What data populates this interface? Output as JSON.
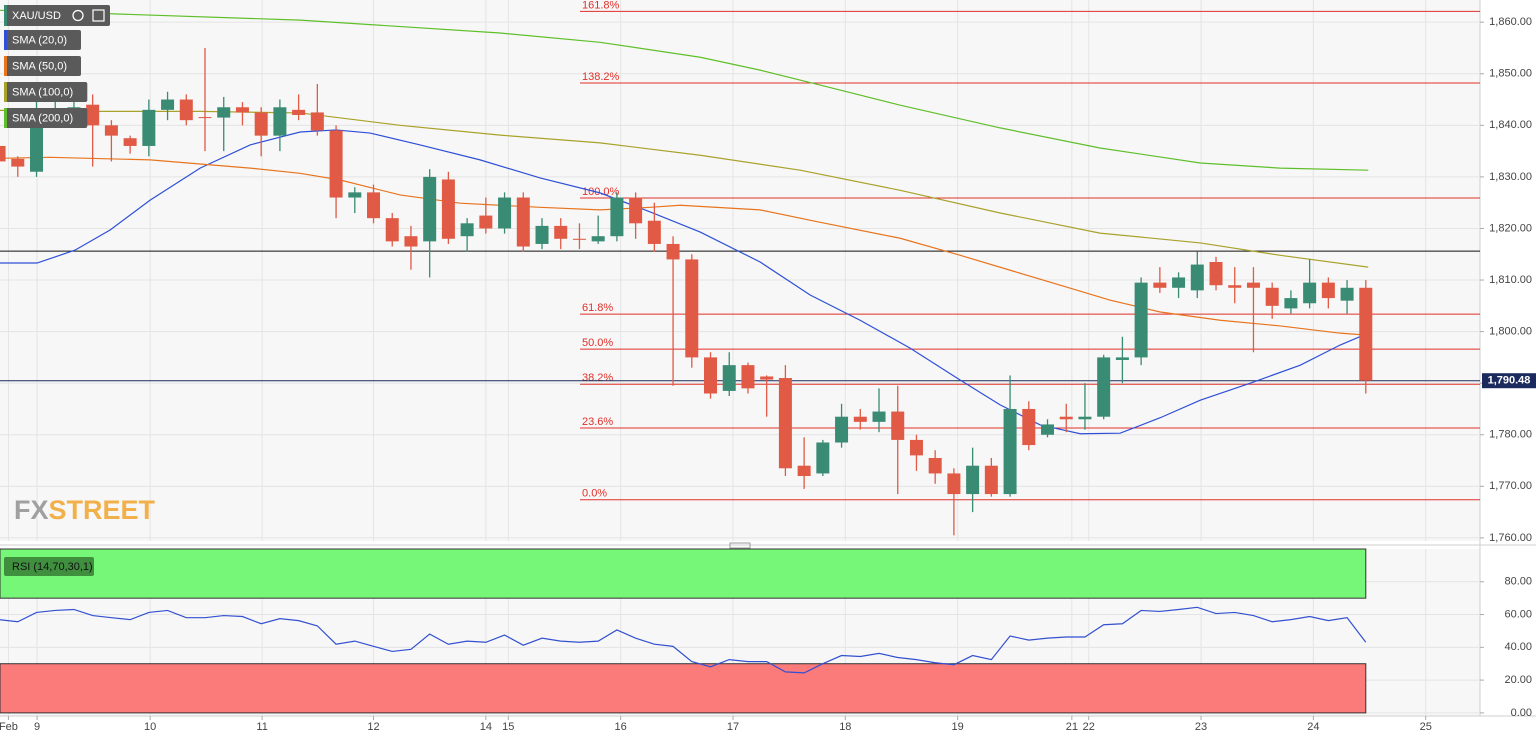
{
  "chart_data": [
    {
      "type": "candlestick",
      "title": "XAU/USD",
      "up_color": "#3a8b74",
      "down_color": "#e05a45",
      "open": [
        1836,
        1833.5,
        1831,
        1842,
        1842.5,
        1844,
        1840,
        1837.5,
        1836,
        1843,
        1845,
        1841.6,
        1841.5,
        1843.5,
        1842.5,
        1838,
        1843,
        1842.5,
        1839,
        1826,
        1827,
        1822,
        1818.5,
        1817.5,
        1829.5,
        1818.5,
        1822.5,
        1820,
        1826,
        1817,
        1820.5,
        1818,
        1817.5,
        1818.5,
        1826,
        1821.5,
        1817,
        1814,
        1795,
        1788.5,
        1793.5,
        1791.3,
        1791,
        1774,
        1772.5,
        1778.5,
        1783.5,
        1782.5,
        1784.5,
        1779,
        1775.5,
        1772.5,
        1768.5,
        1774,
        1768.5,
        1785,
        1780,
        1783.5,
        1783,
        1783.5,
        1794.5,
        1795,
        1809.5,
        1808.5,
        1808,
        1813.5,
        1809,
        1809.5,
        1808.5,
        1804.5,
        1805.5,
        1809.5,
        1806,
        1808.5
      ],
      "high": [
        1837,
        1834,
        1846,
        1846,
        1848,
        1846,
        1841,
        1838,
        1845,
        1846.5,
        1846,
        1855,
        1845.5,
        1844.5,
        1843.5,
        1845,
        1846,
        1848,
        1840,
        1828,
        1828.5,
        1823,
        1820.5,
        1831.5,
        1831,
        1822,
        1826,
        1827,
        1827,
        1822,
        1822,
        1821,
        1822.5,
        1827,
        1827,
        1825,
        1818.5,
        1815,
        1796,
        1796,
        1794,
        1791.5,
        1793.5,
        1779.5,
        1779,
        1786,
        1785,
        1789,
        1789.5,
        1780,
        1777,
        1773.5,
        1777.5,
        1775.5,
        1791.5,
        1786.5,
        1783,
        1786,
        1790,
        1795.5,
        1799,
        1810.5,
        1812.5,
        1811.5,
        1815.5,
        1814.5,
        1812.5,
        1812.5,
        1809.5,
        1808,
        1814,
        1810.5,
        1810,
        1810
      ],
      "low": [
        1832,
        1830,
        1830,
        1840,
        1840,
        1832,
        1833,
        1834.5,
        1834,
        1841,
        1840,
        1835,
        1835,
        1840,
        1834,
        1835,
        1841,
        1838,
        1822,
        1823,
        1821,
        1816.5,
        1812,
        1810.5,
        1817,
        1815.5,
        1819,
        1819,
        1815.5,
        1816,
        1816,
        1816,
        1817,
        1817.5,
        1818,
        1815.5,
        1789.5,
        1793,
        1787,
        1787.5,
        1788,
        1783.5,
        1772,
        1769.5,
        1772,
        1777.5,
        1781,
        1780.5,
        1768.5,
        1773,
        1770.5,
        1760.5,
        1765,
        1768,
        1768,
        1777,
        1779.5,
        1780.5,
        1781,
        1783,
        1790,
        1793.5,
        1807.5,
        1806.5,
        1806.5,
        1808,
        1805.5,
        1796,
        1802.5,
        1803.5,
        1804.5,
        1804.5,
        1803.5,
        1788
      ],
      "close": [
        1833,
        1832,
        1843,
        1843,
        1843.5,
        1840,
        1838,
        1836,
        1843,
        1845,
        1841,
        1841.4,
        1843.5,
        1842.5,
        1838,
        1843.5,
        1842,
        1839,
        1826,
        1827,
        1822,
        1817.5,
        1816.5,
        1830,
        1818,
        1821,
        1820,
        1826,
        1816.5,
        1820.5,
        1818,
        1817.8,
        1818.5,
        1826,
        1821,
        1817,
        1814,
        1795,
        1788,
        1793.5,
        1789,
        1790.7,
        1773.5,
        1772,
        1778.5,
        1783.5,
        1782.5,
        1784.5,
        1779,
        1776,
        1772.5,
        1768.5,
        1774,
        1768.5,
        1785,
        1778,
        1782,
        1783,
        1783.5,
        1795,
        1795,
        1809.5,
        1808.5,
        1810.5,
        1813,
        1809,
        1808.5,
        1808.5,
        1805,
        1806.5,
        1809.5,
        1806.5,
        1808.5,
        1790.48
      ],
      "series": [
        {
          "name": "SMA (20,0)",
          "color": "#2f4fd8",
          "x": [
            0.05,
            2.03,
            4.06,
            5.93,
            8.07,
            10.74,
            13.41,
            16.08,
            18.0,
            19.82,
            22.49,
            25.69,
            28.9,
            32.1,
            34.78,
            37.45,
            40.65,
            43.32,
            45.99,
            48.66,
            51.34,
            53.47,
            55.61,
            57.75,
            59.88,
            62.02,
            64.16,
            66.83,
            69.5,
            71.63,
            73.13
          ],
          "values": [
            1813.3,
            1813.3,
            1815.8,
            1819.7,
            1825.5,
            1831.7,
            1836.2,
            1838.7,
            1839.1,
            1838.5,
            1836.2,
            1833.3,
            1829.8,
            1826.9,
            1823.2,
            1819.3,
            1813.5,
            1807.1,
            1802.2,
            1796.8,
            1790.6,
            1785.8,
            1781.9,
            1780.2,
            1780.3,
            1783.3,
            1786.7,
            1790.0,
            1793.5,
            1797.4,
            1799.7
          ]
        },
        {
          "name": "SMA (50,0)",
          "color": "#e8741e",
          "x": [
            0.05,
            2.72,
            8.07,
            13.41,
            16.08,
            18.22,
            21.42,
            24.63,
            28.9,
            32.1,
            34.78,
            36.38,
            40.65,
            43.86,
            48.13,
            51.34,
            54.01,
            56.68,
            59.35,
            62.02,
            65.22,
            68.43,
            71.63,
            73.13
          ],
          "values": [
            1833.6,
            1833.8,
            1833.3,
            1831.7,
            1830.7,
            1829.4,
            1826.5,
            1824.9,
            1824.1,
            1823.6,
            1824.1,
            1824.5,
            1823.6,
            1821.2,
            1818.1,
            1814.8,
            1811.9,
            1809.0,
            1806.1,
            1803.8,
            1802.2,
            1801.1,
            1799.7,
            1799.3
          ]
        },
        {
          "name": "SMA (100,0)",
          "color": "#a9a22a",
          "x": [
            0.05,
            5.4,
            10.74,
            16.08,
            21.42,
            26.76,
            32.1,
            37.45,
            42.79,
            48.13,
            53.47,
            58.8,
            64.16,
            68.43,
            73.13
          ],
          "values": [
            1842.9,
            1842.7,
            1842.7,
            1842.4,
            1840.0,
            1838.1,
            1836.6,
            1834.2,
            1831.3,
            1827.4,
            1823.0,
            1819.1,
            1817.2,
            1814.8,
            1812.5
          ]
        },
        {
          "name": "SMA (200,0)",
          "color": "#5fbf2a",
          "x": [
            0.05,
            5.4,
            16.08,
            26.76,
            32.1,
            37.45,
            40.65,
            43.86,
            48.13,
            53.47,
            58.8,
            64.16,
            68.43,
            73.13
          ],
          "values": [
            1862.3,
            1861.7,
            1860.4,
            1857.9,
            1856.1,
            1853.2,
            1850.7,
            1847.8,
            1843.9,
            1839.5,
            1835.6,
            1832.7,
            1831.7,
            1831.3
          ]
        }
      ],
      "fib_start": 31.03,
      "fib_color": "#e0302a",
      "fib_levels": [
        {
          "label": "161.8%",
          "value": 1862.1
        },
        {
          "label": "138.2%",
          "value": 1848.2
        },
        {
          "label": "100.0%",
          "value": 1825.9
        },
        {
          "label": "61.8%",
          "value": 1803.4
        },
        {
          "label": "50.0%",
          "value": 1796.6
        },
        {
          "label": "38.2%",
          "value": 1789.8
        },
        {
          "label": "23.6%",
          "value": 1781.3
        },
        {
          "label": "0.0%",
          "value": 1767.4
        }
      ],
      "reference_level": 1815.6,
      "last_price": {
        "value": 1790.48,
        "label": "1,790.48"
      },
      "last_price_color": "#1b2a5c",
      "watermark": [
        "FX",
        "STREET"
      ],
      "xlim": [
        0.05,
        79.1
      ],
      "xticks": [
        {
          "value": 0.5,
          "label": "Feb"
        },
        {
          "value": 2.03,
          "label": "9"
        },
        {
          "value": 8.07,
          "label": "10"
        },
        {
          "value": 14.05,
          "label": "11"
        },
        {
          "value": 20.0,
          "label": "12"
        },
        {
          "value": 26.0,
          "label": "14"
        },
        {
          "value": 27.2,
          "label": "15"
        },
        {
          "value": 33.2,
          "label": "16"
        },
        {
          "value": 39.2,
          "label": "17"
        },
        {
          "value": 45.2,
          "label": "18"
        },
        {
          "value": 51.2,
          "label": "19"
        },
        {
          "value": 57.3,
          "label": "21"
        },
        {
          "value": 58.2,
          "label": "22"
        },
        {
          "value": 64.2,
          "label": "23"
        },
        {
          "value": 70.2,
          "label": "24"
        },
        {
          "value": 76.2,
          "label": "25"
        }
      ],
      "ylim": [
        1759.4,
        1864.3
      ],
      "yticks": [
        {
          "value": 1760,
          "label": "1,760.00"
        },
        {
          "value": 1770,
          "label": "1,770.00"
        },
        {
          "value": 1780,
          "label": "1,780.00"
        },
        {
          "value": 1790,
          "label": "1,790.00"
        },
        {
          "value": 1800,
          "label": "1,800.00"
        },
        {
          "value": 1810,
          "label": "1,810.00"
        },
        {
          "value": 1820,
          "label": "1,820.00"
        },
        {
          "value": 1830,
          "label": "1,830.00"
        },
        {
          "value": 1840,
          "label": "1,840.00"
        },
        {
          "value": 1850,
          "label": "1,850.00"
        },
        {
          "value": 1860,
          "label": "1,860.00"
        }
      ],
      "grid": true
    },
    {
      "type": "line",
      "title": "RSI (14,70,30,1)",
      "color": "#3350d0",
      "values": [
        56.9,
        55.6,
        61.3,
        62.5,
        63.1,
        59.4,
        58.1,
        56.9,
        61.3,
        62.5,
        58.1,
        58.1,
        59.4,
        58.8,
        54.4,
        57.5,
        56.3,
        53.1,
        41.9,
        43.8,
        40.6,
        37.5,
        38.8,
        48.1,
        41.9,
        43.8,
        43.1,
        47.5,
        41.3,
        45.6,
        43.8,
        43.1,
        43.8,
        50.6,
        45.6,
        41.9,
        40.6,
        31.3,
        28.1,
        32.5,
        31.3,
        31.3,
        25.0,
        24.4,
        30.0,
        35.0,
        34.4,
        36.3,
        33.8,
        32.5,
        30.6,
        29.4,
        35.0,
        32.5,
        46.9,
        44.4,
        45.6,
        46.3,
        46.3,
        53.8,
        54.4,
        62.5,
        61.9,
        63.1,
        64.4,
        60.6,
        61.3,
        59.4,
        55.6,
        56.9,
        58.8,
        56.3,
        58.1,
        43.1
      ],
      "bands": [
        {
          "from": 70,
          "to": 100,
          "color": "#77f777"
        },
        {
          "from": 0,
          "to": 30,
          "color": "#fb7a7a"
        }
      ],
      "ylim": [
        -1.9,
        100
      ],
      "yticks": [
        {
          "value": 0,
          "label": "0.00"
        },
        {
          "value": 20,
          "label": "20.00"
        },
        {
          "value": 40,
          "label": "40.00"
        },
        {
          "value": 60,
          "label": "60.00"
        },
        {
          "value": 80,
          "label": "80.00"
        }
      ],
      "grid": true
    }
  ]
}
